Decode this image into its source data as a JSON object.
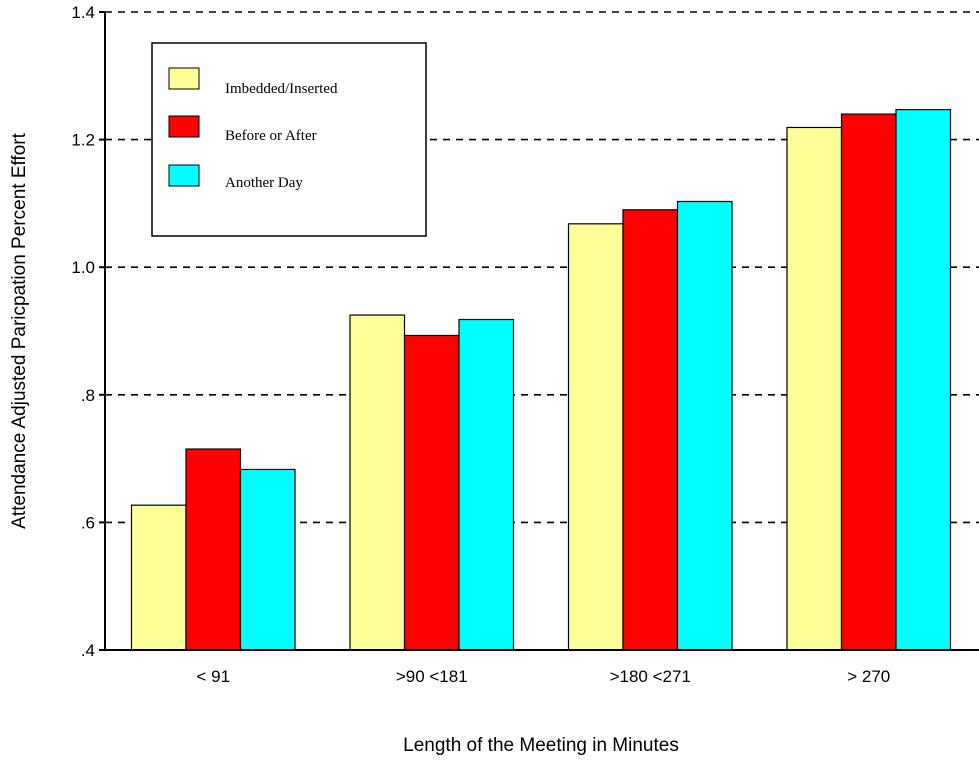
{
  "chart_data": {
    "type": "bar",
    "title": "",
    "xlabel": "Length of the Meeting in Minutes",
    "ylabel": "Attendance Adjusted Paricpation Percent Effort",
    "categories": [
      "< 91",
      ">90 <181",
      ">180 <271",
      "> 270"
    ],
    "series": [
      {
        "name": "Imbedded/Inserted",
        "color": "#ffff99",
        "values": [
          0.627,
          0.925,
          1.068,
          1.219
        ]
      },
      {
        "name": "Before or After",
        "color": "#ff0000",
        "values": [
          0.715,
          0.893,
          1.09,
          1.24
        ]
      },
      {
        "name": "Another Day",
        "color": "#00ffff",
        "values": [
          0.683,
          0.918,
          1.103,
          1.247
        ]
      }
    ],
    "ylim": [
      0.4,
      1.4
    ],
    "yticks": [
      {
        "value": 0.4,
        "label": ".4"
      },
      {
        "value": 0.6,
        "label": ".6"
      },
      {
        "value": 0.8,
        "label": ".8"
      },
      {
        "value": 1.0,
        "label": "1.0"
      },
      {
        "value": 1.2,
        "label": "1.2"
      },
      {
        "value": 1.4,
        "label": "1.4"
      }
    ],
    "grid": "dashed horizontal",
    "legend_position": "top-left"
  }
}
